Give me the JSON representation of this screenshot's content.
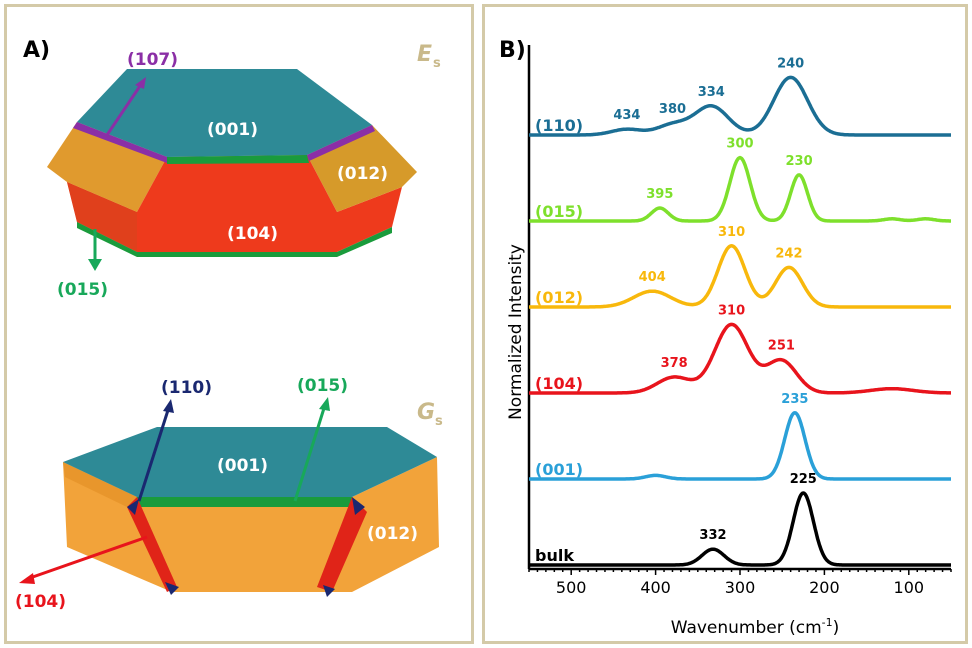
{
  "panel_a": {
    "letter": "A)",
    "top_crystal": {
      "energy_symbol": "E",
      "energy_subscript": "s",
      "faces": {
        "top": "(001)",
        "front": "(104)",
        "side": "(012)"
      },
      "arrows": {
        "upper": "(107)",
        "lower": "(015)"
      }
    },
    "bottom_crystal": {
      "energy_symbol": "G",
      "energy_subscript": "s",
      "faces": {
        "top": "(001)",
        "side": "(012)"
      },
      "arrows": {
        "left_up": "(110)",
        "right_up": "(015)",
        "left_down": "(104)"
      }
    },
    "colors": {
      "teal": "#2e8a96",
      "orange": "#f2a33a",
      "red": "#ee3a1c",
      "green": "#1a9b3c",
      "purple": "#8b2fa6",
      "navy": "#1a2870",
      "lightgreen": "#18a85a"
    }
  },
  "panel_b": {
    "letter": "B)"
  },
  "chart_data": {
    "type": "line",
    "xlabel": "Wavenumber (cm",
    "xlabel_sup": "-1",
    "xlabel_close": ")",
    "ylabel": "Normalized Intensity",
    "xlim": [
      550,
      50
    ],
    "x_reversed": true,
    "xticks": [
      500,
      400,
      300,
      200,
      100
    ],
    "series": [
      {
        "name": "bulk",
        "color": "#000000",
        "offset": 0,
        "peaks": [
          {
            "x": 332,
            "amp": 0.22,
            "w": 13
          },
          {
            "x": 225,
            "amp": 1.0,
            "w": 12
          }
        ],
        "peak_labels": [
          "332",
          "225"
        ]
      },
      {
        "name": "(001)",
        "color": "#2aa0d8",
        "offset": 1,
        "peaks": [
          {
            "x": 400,
            "amp": 0.05,
            "w": 12
          },
          {
            "x": 235,
            "amp": 0.92,
            "w": 12
          }
        ],
        "peak_labels": [
          "235"
        ]
      },
      {
        "name": "(104)",
        "color": "#e8141c",
        "offset": 2,
        "peaks": [
          {
            "x": 378,
            "amp": 0.22,
            "w": 20
          },
          {
            "x": 310,
            "amp": 0.95,
            "w": 20
          },
          {
            "x": 251,
            "amp": 0.45,
            "w": 18
          },
          {
            "x": 120,
            "amp": 0.06,
            "w": 25
          }
        ],
        "peak_labels": [
          "378",
          "310",
          "251"
        ]
      },
      {
        "name": "(012)",
        "color": "#f8b80c",
        "offset": 3,
        "peaks": [
          {
            "x": 404,
            "amp": 0.22,
            "w": 22
          },
          {
            "x": 310,
            "amp": 0.85,
            "w": 16
          },
          {
            "x": 242,
            "amp": 0.55,
            "w": 16
          }
        ],
        "peak_labels": [
          "404",
          "310",
          "242"
        ]
      },
      {
        "name": "(015)",
        "color": "#7ee02c",
        "offset": 4,
        "peaks": [
          {
            "x": 395,
            "amp": 0.18,
            "w": 10
          },
          {
            "x": 300,
            "amp": 0.88,
            "w": 12
          },
          {
            "x": 230,
            "amp": 0.64,
            "w": 10
          },
          {
            "x": 120,
            "amp": 0.03,
            "w": 10
          },
          {
            "x": 80,
            "amp": 0.03,
            "w": 10
          }
        ],
        "peak_labels": [
          "395",
          "300",
          "230"
        ]
      },
      {
        "name": "(110)",
        "color": "#1b6e94",
        "offset": 5,
        "peaks": [
          {
            "x": 434,
            "amp": 0.08,
            "w": 18
          },
          {
            "x": 380,
            "amp": 0.14,
            "w": 18
          },
          {
            "x": 334,
            "amp": 0.4,
            "w": 20
          },
          {
            "x": 240,
            "amp": 0.8,
            "w": 20
          }
        ],
        "peak_labels": [
          "434",
          "380",
          "334",
          "240"
        ]
      }
    ]
  }
}
